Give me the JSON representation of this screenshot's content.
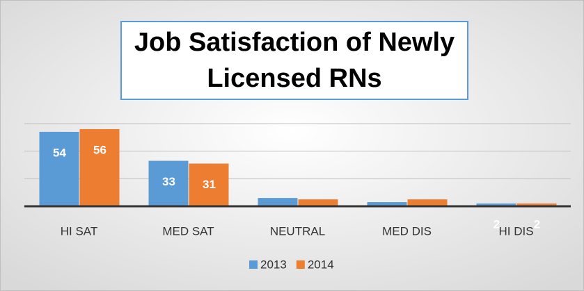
{
  "chart_data": {
    "type": "bar",
    "title": "Job Satisfaction of Newly Licensed RNs",
    "categories": [
      "HI SAT",
      "MED SAT",
      "NEUTRAL",
      "MED DIS",
      "HI DIS"
    ],
    "series": [
      {
        "name": "2013",
        "color": "#5b9bd5",
        "values": [
          54,
          33,
          6,
          3,
          2
        ],
        "value_labels": [
          "54",
          "33",
          null,
          null,
          "2"
        ]
      },
      {
        "name": "2014",
        "color": "#ed7d31",
        "values": [
          56,
          31,
          5,
          5,
          2
        ],
        "value_labels": [
          "56",
          "31",
          null,
          null,
          "2"
        ]
      }
    ],
    "ylim": [
      0,
      60
    ],
    "yticks": [
      0,
      20,
      40,
      60
    ],
    "grid": true,
    "legend": "bottom"
  }
}
